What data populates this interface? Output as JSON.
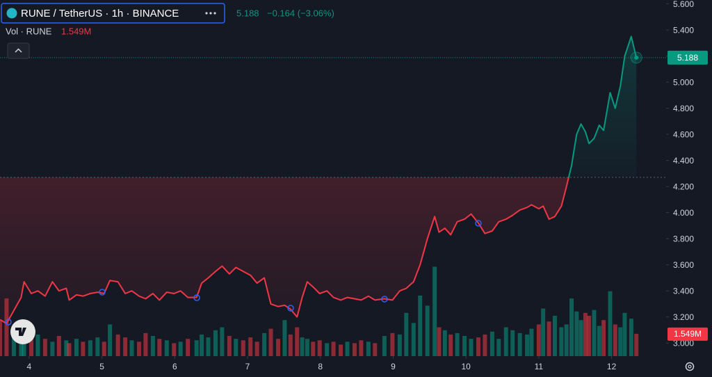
{
  "header": {
    "symbol": "RUNE / TetherUS · 1h · BINANCE",
    "change": "−0.164 (−3.06%)",
    "volume_label": "Vol · RUNE"
  },
  "chart_data": {
    "type": "baseline",
    "x": [
      3.6,
      3.69,
      3.79,
      3.89,
      3.93,
      4.03,
      4.12,
      4.22,
      4.32,
      4.41,
      4.51,
      4.55,
      4.65,
      4.74,
      4.84,
      4.94,
      5.03,
      5.11,
      5.22,
      5.32,
      5.41,
      5.51,
      5.6,
      5.7,
      5.79,
      5.89,
      5.99,
      6.08,
      6.18,
      6.3,
      6.37,
      6.46,
      6.56,
      6.65,
      6.75,
      6.84,
      6.94,
      7.04,
      7.13,
      7.23,
      7.32,
      7.42,
      7.51,
      7.59,
      7.68,
      7.75,
      7.82,
      7.9,
      7.99,
      8.09,
      8.18,
      8.28,
      8.37,
      8.47,
      8.56,
      8.66,
      8.75,
      8.88,
      8.99,
      9.09,
      9.18,
      9.28,
      9.37,
      9.47,
      9.57,
      9.63,
      9.71,
      9.79,
      9.88,
      9.98,
      10.07,
      10.17,
      10.26,
      10.36,
      10.45,
      10.55,
      10.64,
      10.74,
      10.84,
      10.9,
      11.0,
      11.06,
      11.14,
      11.22,
      11.31,
      11.38,
      11.45,
      11.52,
      11.58,
      11.64,
      11.69,
      11.76,
      11.83,
      11.89,
      11.98,
      12.05,
      12.12,
      12.18,
      12.27,
      12.34
    ],
    "values": [
      3.18,
      3.15,
      3.25,
      3.35,
      3.47,
      3.38,
      3.4,
      3.36,
      3.47,
      3.4,
      3.42,
      3.33,
      3.37,
      3.36,
      3.38,
      3.39,
      3.38,
      3.48,
      3.47,
      3.38,
      3.4,
      3.36,
      3.34,
      3.38,
      3.33,
      3.39,
      3.38,
      3.4,
      3.35,
      3.35,
      3.46,
      3.5,
      3.55,
      3.59,
      3.53,
      3.58,
      3.55,
      3.52,
      3.46,
      3.5,
      3.3,
      3.28,
      3.29,
      3.26,
      3.2,
      3.35,
      3.47,
      3.43,
      3.38,
      3.4,
      3.35,
      3.33,
      3.35,
      3.34,
      3.33,
      3.36,
      3.33,
      3.34,
      3.33,
      3.4,
      3.42,
      3.47,
      3.6,
      3.8,
      3.97,
      3.85,
      3.88,
      3.83,
      3.93,
      3.95,
      3.99,
      3.92,
      3.84,
      3.86,
      3.93,
      3.95,
      3.98,
      4.02,
      4.04,
      4.06,
      4.03,
      4.05,
      3.95,
      3.97,
      4.05,
      4.2,
      4.36,
      4.6,
      4.68,
      4.62,
      4.53,
      4.57,
      4.67,
      4.63,
      4.92,
      4.8,
      4.97,
      5.2,
      5.35,
      5.188
    ],
    "baseline": 4.27,
    "up_color": "#089981",
    "down_color": "#f23645",
    "xlim": [
      3.6,
      12.72
    ],
    "xticks": [
      4,
      5,
      6,
      7,
      8,
      9,
      10,
      11,
      12
    ],
    "ylim": [
      2.9,
      5.63
    ],
    "yticks": [
      {
        "value": 5.6,
        "label": "5.600"
      },
      {
        "value": 5.4,
        "label": "5.400"
      },
      {
        "value": 5.2,
        "label": "5.200"
      },
      {
        "value": 5.0,
        "label": "5.000"
      },
      {
        "value": 4.8,
        "label": "4.800"
      },
      {
        "value": 4.6,
        "label": "4.600"
      },
      {
        "value": 4.4,
        "label": "4.400"
      },
      {
        "value": 4.2,
        "label": "4.200"
      },
      {
        "value": 4.0,
        "label": "4.000"
      },
      {
        "value": 3.8,
        "label": "3.800"
      },
      {
        "value": 3.6,
        "label": "3.600"
      },
      {
        "value": 3.4,
        "label": "3.400"
      },
      {
        "value": 3.2,
        "label": "3.200"
      },
      {
        "value": 3.0,
        "label": "3.000"
      }
    ],
    "grid": false,
    "volume": {
      "values": [
        2.5,
        4.0,
        1.5,
        1.2,
        1.0,
        1.3,
        1.5,
        1.2,
        1.0,
        1.4,
        1.1,
        0.9,
        1.2,
        1.0,
        1.1,
        1.3,
        1.0,
        2.2,
        1.5,
        1.3,
        1.1,
        1.0,
        1.6,
        1.4,
        1.2,
        1.1,
        0.9,
        1.0,
        1.2,
        1.1,
        1.5,
        1.3,
        1.8,
        2.0,
        1.4,
        1.2,
        1.1,
        1.3,
        1.0,
        1.6,
        1.9,
        1.2,
        2.5,
        1.5,
        2.0,
        1.3,
        1.2,
        1.0,
        1.1,
        0.9,
        1.0,
        0.8,
        1.0,
        0.9,
        1.1,
        1.0,
        0.9,
        1.4,
        1.6,
        1.5,
        3.0,
        2.3,
        4.2,
        3.5,
        6.2,
        2.0,
        1.8,
        1.5,
        1.6,
        1.4,
        1.2,
        1.3,
        1.5,
        1.7,
        1.2,
        2.0,
        1.8,
        1.6,
        1.5,
        1.9,
        2.2,
        3.3,
        2.4,
        2.8,
        2.0,
        2.2,
        4.0,
        3.1,
        2.5,
        3.0,
        2.8,
        3.2,
        2.1,
        2.5,
        4.5,
        2.2,
        2.0,
        3.0,
        2.6,
        1.549
      ],
      "last_label": "1.549M",
      "ylim": [
        0,
        24.7
      ]
    }
  }
}
